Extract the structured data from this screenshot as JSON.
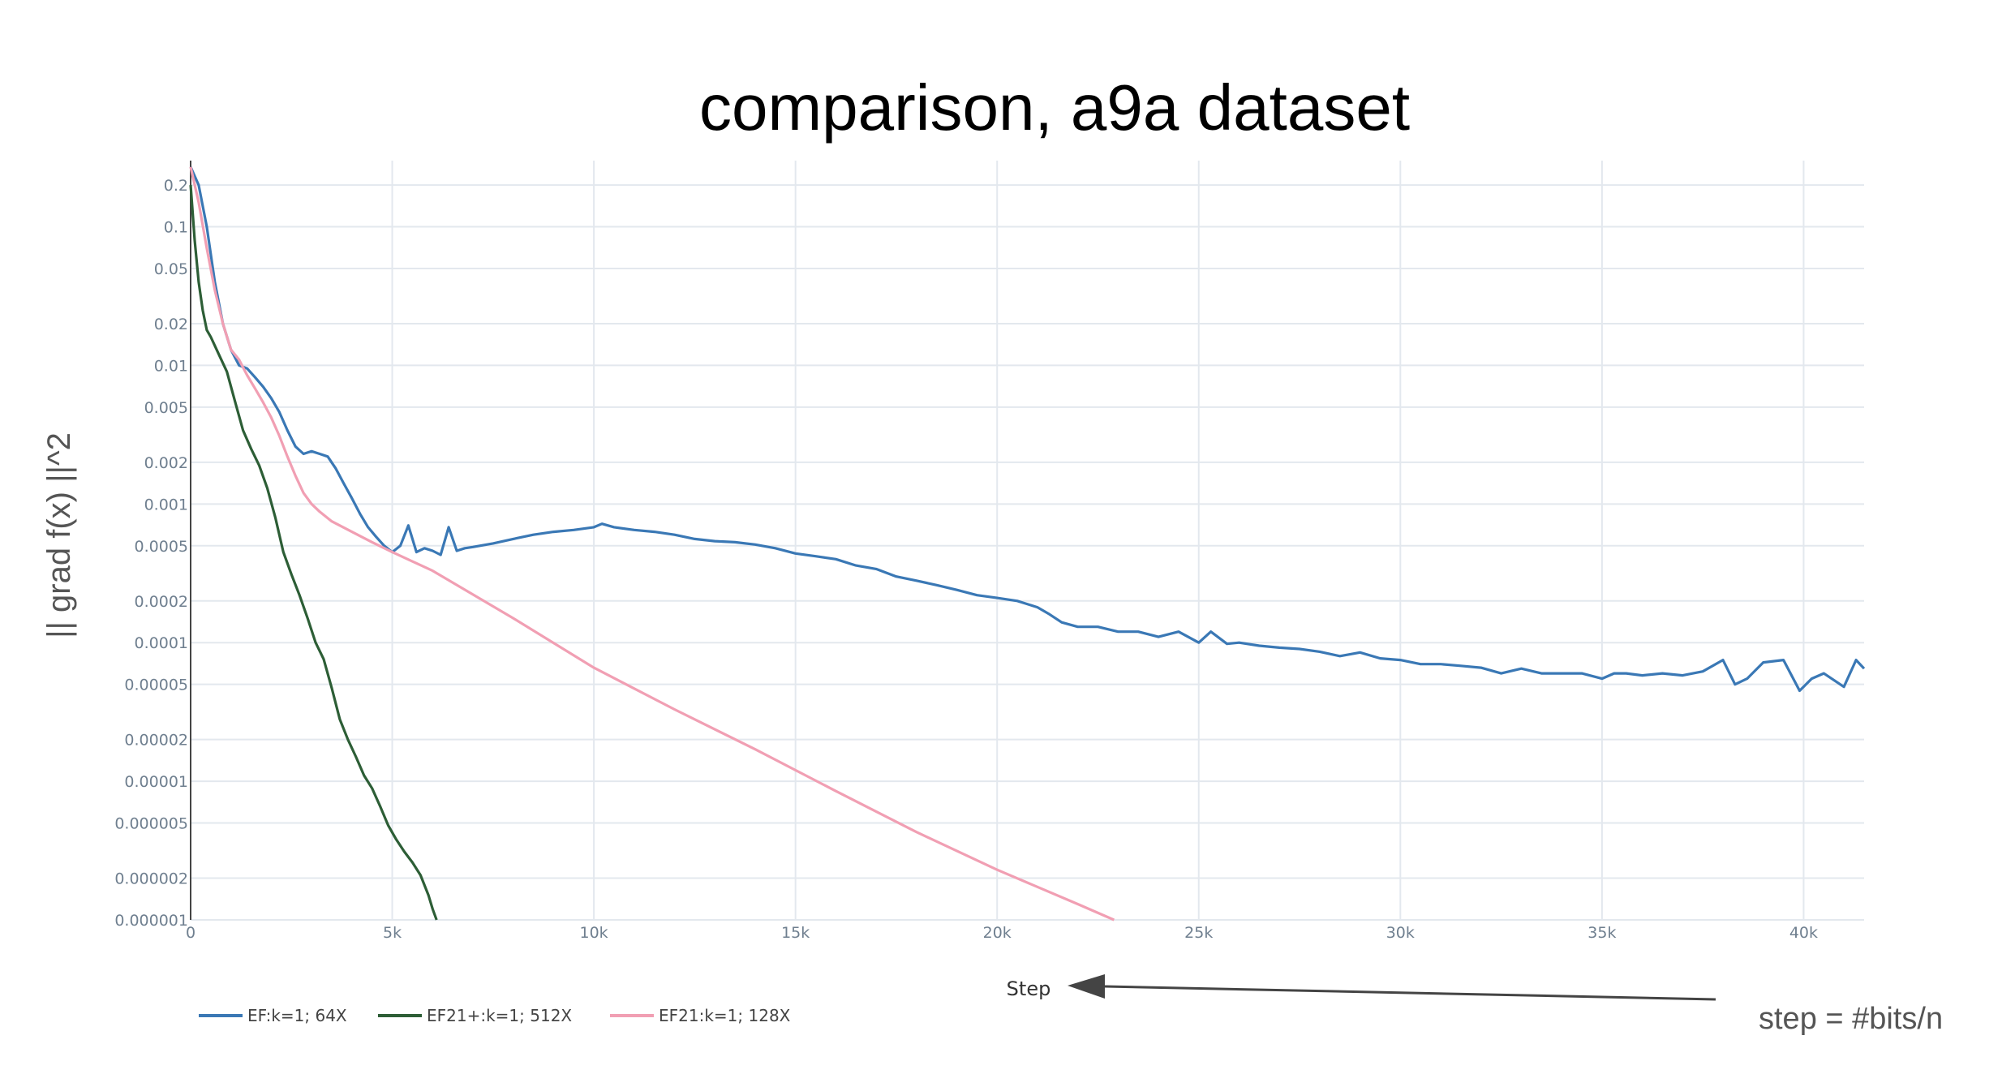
{
  "chart_data": {
    "type": "line",
    "title": "comparison, a9a dataset",
    "xlabel": "Step",
    "ylabel": "|| grad f(x) ||^2",
    "yscale": "log",
    "xlim": [
      0,
      41500
    ],
    "ylim": [
      1e-06,
      0.3
    ],
    "grid": true,
    "legend_position": "bottom-left",
    "x_ticks": [
      {
        "value": 0,
        "label": "0"
      },
      {
        "value": 5000,
        "label": "5k"
      },
      {
        "value": 10000,
        "label": "10k"
      },
      {
        "value": 15000,
        "label": "15k"
      },
      {
        "value": 20000,
        "label": "20k"
      },
      {
        "value": 25000,
        "label": "25k"
      },
      {
        "value": 30000,
        "label": "30k"
      },
      {
        "value": 35000,
        "label": "35k"
      },
      {
        "value": 40000,
        "label": "40k"
      }
    ],
    "y_ticks": [
      {
        "value": 0.2,
        "label": "0.2"
      },
      {
        "value": 0.1,
        "label": "0.1"
      },
      {
        "value": 0.05,
        "label": "0.05"
      },
      {
        "value": 0.02,
        "label": "0.02"
      },
      {
        "value": 0.01,
        "label": "0.01"
      },
      {
        "value": 0.005,
        "label": "0.005"
      },
      {
        "value": 0.002,
        "label": "0.002"
      },
      {
        "value": 0.001,
        "label": "0.001"
      },
      {
        "value": 0.0005,
        "label": "0.0005"
      },
      {
        "value": 0.0002,
        "label": "0.0002"
      },
      {
        "value": 0.0001,
        "label": "0.0001"
      },
      {
        "value": 5e-05,
        "label": "0.00005"
      },
      {
        "value": 2e-05,
        "label": "0.00002"
      },
      {
        "value": 1e-05,
        "label": "0.00001"
      },
      {
        "value": 5e-06,
        "label": "0.000005"
      },
      {
        "value": 2e-06,
        "label": "0.000002"
      },
      {
        "value": 1e-06,
        "label": "0.000001"
      }
    ],
    "series": [
      {
        "name": "EF:k=1; 64X",
        "color": "#3a78b5",
        "x": [
          0,
          200,
          400,
          600,
          800,
          1000,
          1200,
          1400,
          1600,
          1800,
          2000,
          2200,
          2400,
          2600,
          2800,
          3000,
          3200,
          3400,
          3600,
          3800,
          4000,
          4200,
          4400,
          4600,
          4800,
          5000,
          5200,
          5400,
          5600,
          5800,
          6000,
          6200,
          6400,
          6600,
          6800,
          7000,
          7500,
          8000,
          8500,
          9000,
          9500,
          10000,
          10200,
          10500,
          11000,
          11500,
          12000,
          12500,
          13000,
          13500,
          14000,
          14500,
          15000,
          15500,
          16000,
          16500,
          17000,
          17500,
          18000,
          18500,
          19000,
          19500,
          20000,
          20500,
          21000,
          21300,
          21600,
          22000,
          22500,
          23000,
          23500,
          24000,
          24500,
          25000,
          25300,
          25700,
          26000,
          26500,
          27000,
          27500,
          28000,
          28500,
          29000,
          29500,
          30000,
          30500,
          31000,
          31500,
          32000,
          32500,
          33000,
          33500,
          34000,
          34500,
          35000,
          35300,
          35600,
          36000,
          36500,
          37000,
          37500,
          38000,
          38300,
          38600,
          39000,
          39500,
          39900,
          40200,
          40500,
          41000,
          41300,
          41500
        ],
        "values": [
          0.27,
          0.2,
          0.1,
          0.04,
          0.02,
          0.013,
          0.01,
          0.0095,
          0.0082,
          0.007,
          0.0058,
          0.0046,
          0.0034,
          0.0026,
          0.0023,
          0.0024,
          0.0023,
          0.0022,
          0.0018,
          0.0014,
          0.0011,
          0.00085,
          0.00068,
          0.00058,
          0.0005,
          0.00045,
          0.0005,
          0.0007,
          0.00045,
          0.00048,
          0.00046,
          0.00043,
          0.00068,
          0.00046,
          0.00048,
          0.00049,
          0.00052,
          0.00056,
          0.0006,
          0.00063,
          0.00065,
          0.00068,
          0.00072,
          0.00068,
          0.00065,
          0.00063,
          0.0006,
          0.00056,
          0.00054,
          0.00053,
          0.00051,
          0.00048,
          0.00044,
          0.00042,
          0.0004,
          0.00036,
          0.00034,
          0.0003,
          0.00028,
          0.00026,
          0.00024,
          0.00022,
          0.00021,
          0.0002,
          0.00018,
          0.00016,
          0.00014,
          0.00013,
          0.00013,
          0.00012,
          0.00012,
          0.00011,
          0.00012,
          0.0001,
          0.00012,
          9.8e-05,
          0.0001,
          9.5e-05,
          9.2e-05,
          9e-05,
          8.6e-05,
          8e-05,
          8.5e-05,
          7.7e-05,
          7.5e-05,
          7e-05,
          7e-05,
          6.8e-05,
          6.6e-05,
          6e-05,
          6.5e-05,
          6e-05,
          6e-05,
          6e-05,
          5.5e-05,
          6e-05,
          6e-05,
          5.8e-05,
          6e-05,
          5.8e-05,
          6.2e-05,
          7.5e-05,
          5e-05,
          5.5e-05,
          7.2e-05,
          7.5e-05,
          4.5e-05,
          5.5e-05,
          6e-05,
          4.8e-05,
          7.5e-05,
          6.5e-05
        ]
      },
      {
        "name": "EF21+:k=1; 512X",
        "color": "#2d5e36",
        "x": [
          0,
          100,
          200,
          300,
          400,
          500,
          700,
          900,
          1100,
          1300,
          1500,
          1700,
          1900,
          2100,
          2300,
          2500,
          2700,
          2900,
          3100,
          3300,
          3500,
          3700,
          3900,
          4100,
          4300,
          4500,
          4700,
          4900,
          5100,
          5300,
          5500,
          5700,
          5900,
          6000,
          6100
        ],
        "values": [
          0.2,
          0.08,
          0.04,
          0.025,
          0.018,
          0.016,
          0.012,
          0.009,
          0.0055,
          0.0034,
          0.0025,
          0.0019,
          0.0013,
          0.0008,
          0.00045,
          0.00031,
          0.00022,
          0.00015,
          0.0001,
          7.6e-05,
          4.7e-05,
          2.8e-05,
          2e-05,
          1.5e-05,
          1.1e-05,
          8.9e-06,
          6.6e-06,
          4.8e-06,
          3.8e-06,
          3.1e-06,
          2.6e-06,
          2.1e-06,
          1.5e-06,
          1.2e-06,
          1e-06
        ]
      },
      {
        "name": "EF21:k=1; 128X",
        "color": "#f19fb3",
        "x": [
          0,
          200,
          400,
          600,
          800,
          1000,
          1200,
          1400,
          1600,
          1800,
          2000,
          2200,
          2400,
          2600,
          2800,
          3000,
          3200,
          3500,
          4000,
          4500,
          5000,
          6000,
          8000,
          10000,
          12000,
          14000,
          16000,
          18000,
          20000,
          22000,
          22900
        ],
        "values": [
          0.27,
          0.15,
          0.07,
          0.035,
          0.02,
          0.013,
          0.011,
          0.0085,
          0.0068,
          0.0054,
          0.0042,
          0.0031,
          0.0022,
          0.0016,
          0.0012,
          0.001,
          0.00088,
          0.00075,
          0.00063,
          0.00053,
          0.00045,
          0.00033,
          0.00015,
          6.6e-05,
          3.3e-05,
          1.7e-05,
          8.5e-06,
          4.3e-06,
          2.3e-06,
          1.3e-06,
          1e-06
        ]
      }
    ],
    "annotations": [
      {
        "text": "step = #bits/n",
        "arrow_to": "Step"
      }
    ]
  }
}
